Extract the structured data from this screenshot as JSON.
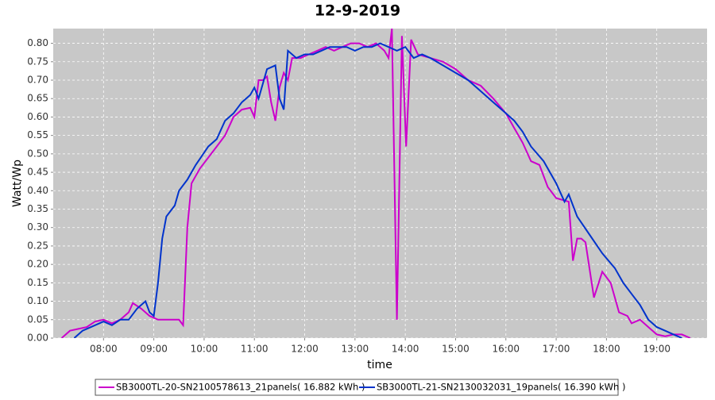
{
  "chart_data": {
    "type": "line",
    "title": "12-9-2019",
    "x_label": "time",
    "y_label": "Watt/Wp",
    "xlim": [
      "07:00",
      "20:00"
    ],
    "xticks": [
      "08:00",
      "09:00",
      "10:00",
      "11:00",
      "12:00",
      "13:00",
      "14:00",
      "15:00",
      "16:00",
      "17:00",
      "18:00",
      "19:00"
    ],
    "ylim": [
      0,
      0.84
    ],
    "yticks": [
      {
        "value": 0,
        "label": "0.00"
      },
      {
        "value": 0.05,
        "label": "0.05"
      },
      {
        "value": 0.1,
        "label": "0.10"
      },
      {
        "value": 0.15,
        "label": "0.15"
      },
      {
        "value": 0.2,
        "label": "0.20"
      },
      {
        "value": 0.25,
        "label": "0.25"
      },
      {
        "value": 0.3,
        "label": "0.30"
      },
      {
        "value": 0.35,
        "label": "0.35"
      },
      {
        "value": 0.4,
        "label": "0.40"
      },
      {
        "value": 0.45,
        "label": "0.45"
      },
      {
        "value": 0.5,
        "label": "0.50"
      },
      {
        "value": 0.55,
        "label": "0.55"
      },
      {
        "value": 0.6,
        "label": "0.60"
      },
      {
        "value": 0.65,
        "label": "0.65"
      },
      {
        "value": 0.7,
        "label": "0.70"
      },
      {
        "value": 0.75,
        "label": "0.75"
      },
      {
        "value": 0.8,
        "label": "0.80"
      }
    ],
    "grid": true,
    "legend": "bottom",
    "series": [
      {
        "name": "SB3000TL-20-SN2100578613_21panels( 16.882 kWh )",
        "color": "#cc00cc",
        "x": [
          "07:10",
          "07:20",
          "07:30",
          "07:40",
          "07:50",
          "08:00",
          "08:10",
          "08:20",
          "08:30",
          "08:35",
          "08:45",
          "08:55",
          "09:05",
          "09:20",
          "09:30",
          "09:35",
          "09:40",
          "09:45",
          "09:55",
          "10:05",
          "10:15",
          "10:25",
          "10:35",
          "10:45",
          "10:55",
          "11:00",
          "11:05",
          "11:10",
          "11:15",
          "11:20",
          "11:25",
          "11:30",
          "11:35",
          "11:40",
          "11:45",
          "11:55",
          "12:05",
          "12:15",
          "12:25",
          "12:35",
          "12:45",
          "12:55",
          "13:05",
          "13:15",
          "13:25",
          "13:35",
          "13:40",
          "13:44",
          "13:50",
          "13:56",
          "14:01",
          "14:07",
          "14:15",
          "14:30",
          "14:45",
          "15:00",
          "15:15",
          "15:30",
          "15:45",
          "16:00",
          "16:10",
          "16:20",
          "16:30",
          "16:40",
          "16:50",
          "17:00",
          "17:15",
          "17:20",
          "17:25",
          "17:30",
          "17:35",
          "17:45",
          "17:55",
          "18:05",
          "18:15",
          "18:25",
          "18:30",
          "18:40",
          "18:50",
          "19:00",
          "19:10",
          "19:20",
          "19:30",
          "19:40"
        ],
        "values": [
          0,
          0.02,
          0.025,
          0.03,
          0.045,
          0.05,
          0.04,
          0.05,
          0.07,
          0.095,
          0.08,
          0.06,
          0.05,
          0.05,
          0.05,
          0.035,
          0.3,
          0.42,
          0.46,
          0.49,
          0.52,
          0.55,
          0.6,
          0.62,
          0.625,
          0.6,
          0.7,
          0.7,
          0.71,
          0.64,
          0.59,
          0.68,
          0.72,
          0.7,
          0.76,
          0.76,
          0.77,
          0.78,
          0.79,
          0.78,
          0.79,
          0.8,
          0.8,
          0.79,
          0.8,
          0.78,
          0.76,
          0.84,
          0.05,
          0.82,
          0.52,
          0.81,
          0.77,
          0.76,
          0.75,
          0.73,
          0.7,
          0.685,
          0.65,
          0.61,
          0.57,
          0.53,
          0.48,
          0.47,
          0.41,
          0.38,
          0.37,
          0.21,
          0.27,
          0.27,
          0.26,
          0.11,
          0.18,
          0.15,
          0.07,
          0.06,
          0.04,
          0.05,
          0.03,
          0.01,
          0.005,
          0.01,
          0.01,
          0
        ]
      },
      {
        "name": "SB3000TL-21-SN2130032031_19panels( 16.390 kWh )",
        "color": "#0033cc",
        "x": [
          "07:25",
          "07:35",
          "07:45",
          "08:00",
          "08:10",
          "08:20",
          "08:30",
          "08:40",
          "08:50",
          "08:55",
          "09:00",
          "09:05",
          "09:10",
          "09:15",
          "09:25",
          "09:30",
          "09:40",
          "09:50",
          "10:05",
          "10:15",
          "10:25",
          "10:35",
          "10:45",
          "10:55",
          "11:00",
          "11:05",
          "11:15",
          "11:25",
          "11:30",
          "11:35",
          "11:40",
          "11:50",
          "12:00",
          "12:10",
          "12:20",
          "12:30",
          "12:40",
          "12:50",
          "13:00",
          "13:10",
          "13:20",
          "13:30",
          "13:40",
          "13:50",
          "14:00",
          "14:10",
          "14:20",
          "14:30",
          "14:45",
          "15:00",
          "15:15",
          "15:30",
          "15:45",
          "16:00",
          "16:10",
          "16:20",
          "16:30",
          "16:45",
          "17:00",
          "17:10",
          "17:15",
          "17:25",
          "17:40",
          "17:55",
          "18:10",
          "18:20",
          "18:30",
          "18:40",
          "18:50",
          "19:00",
          "19:10",
          "19:20",
          "19:30"
        ],
        "values": [
          0,
          0.02,
          0.03,
          0.045,
          0.035,
          0.05,
          0.05,
          0.08,
          0.1,
          0.07,
          0.06,
          0.15,
          0.27,
          0.33,
          0.36,
          0.4,
          0.43,
          0.47,
          0.52,
          0.54,
          0.59,
          0.61,
          0.64,
          0.66,
          0.68,
          0.65,
          0.73,
          0.74,
          0.65,
          0.62,
          0.78,
          0.76,
          0.77,
          0.77,
          0.78,
          0.79,
          0.79,
          0.79,
          0.78,
          0.79,
          0.79,
          0.8,
          0.79,
          0.78,
          0.79,
          0.76,
          0.77,
          0.76,
          0.74,
          0.72,
          0.7,
          0.67,
          0.64,
          0.61,
          0.59,
          0.56,
          0.52,
          0.48,
          0.42,
          0.37,
          0.39,
          0.33,
          0.28,
          0.23,
          0.19,
          0.15,
          0.12,
          0.09,
          0.05,
          0.03,
          0.02,
          0.01,
          0
        ]
      }
    ]
  }
}
